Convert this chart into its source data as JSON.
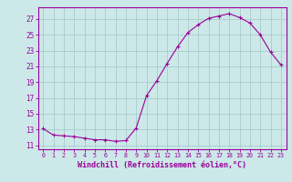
{
  "hours": [
    0,
    1,
    2,
    3,
    4,
    5,
    6,
    7,
    8,
    9,
    10,
    11,
    12,
    13,
    14,
    15,
    16,
    17,
    18,
    19,
    20,
    21,
    22,
    23
  ],
  "values": [
    13.1,
    12.3,
    12.2,
    12.1,
    11.9,
    11.7,
    11.7,
    11.5,
    11.6,
    13.2,
    17.3,
    19.2,
    21.4,
    23.5,
    25.3,
    26.3,
    27.1,
    27.4,
    27.7,
    27.2,
    26.5,
    25.0,
    22.8,
    21.2
  ],
  "line_color": "#990099",
  "marker": "+",
  "bg_color": "#cce8e8",
  "grid_color": "#aacccc",
  "xlabel": "Windchill (Refroidissement éolien,°C)",
  "xlim": [
    -0.5,
    23.5
  ],
  "ylim": [
    10.5,
    28.5
  ],
  "yticks": [
    11,
    13,
    15,
    17,
    19,
    21,
    23,
    25,
    27
  ],
  "xticks": [
    0,
    1,
    2,
    3,
    4,
    5,
    6,
    7,
    8,
    9,
    10,
    11,
    12,
    13,
    14,
    15,
    16,
    17,
    18,
    19,
    20,
    21,
    22,
    23
  ],
  "axis_color": "#990099",
  "font_family": "monospace"
}
